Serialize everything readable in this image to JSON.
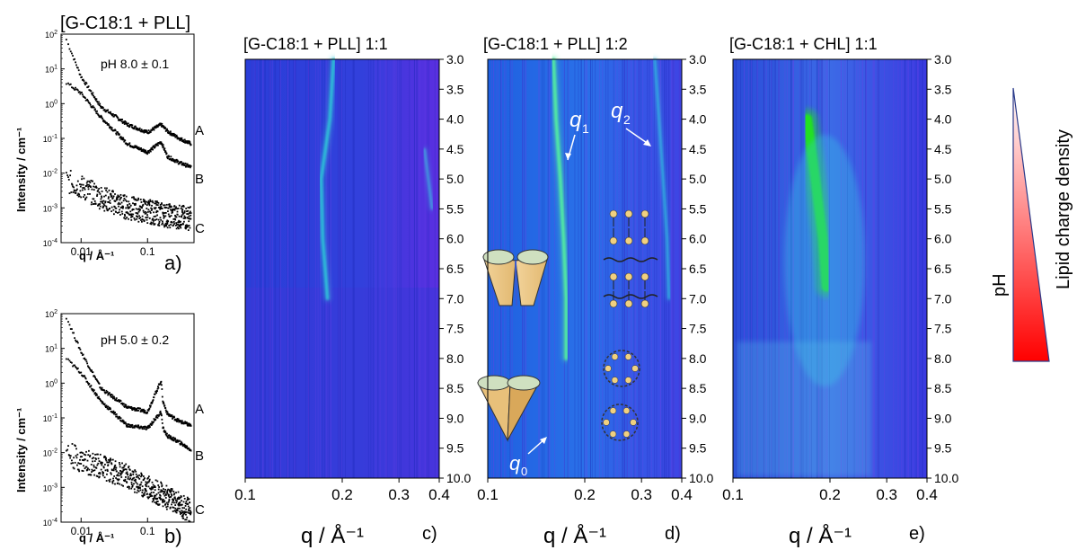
{
  "figure_title": "[G-C18:1 + PLL]",
  "chart_data": [
    {
      "panel": "a)",
      "type": "scatter",
      "annotation": "pH 8.0 ± 0.1",
      "xlabel": "q / Å⁻¹",
      "ylabel": "Intensity / cm⁻¹",
      "xscale": "log",
      "yscale": "log",
      "xlim": [
        0.005,
        0.5
      ],
      "ylim": [
        0.0001,
        100
      ],
      "xtick_labels": [
        "0.01",
        "0.1"
      ],
      "ytick_labels": [
        "10⁴",
        "10³",
        "10²",
        "10¹",
        "10⁰",
        "10¹",
        "10²"
      ],
      "series": [
        {
          "name": "A",
          "x": [
            0.006,
            0.01,
            0.02,
            0.05,
            0.1,
            0.16,
            0.2,
            0.3,
            0.45
          ],
          "y": [
            70,
            6,
            0.8,
            0.25,
            0.15,
            0.25,
            0.16,
            0.1,
            0.07
          ]
        },
        {
          "name": "B",
          "x": [
            0.006,
            0.01,
            0.02,
            0.05,
            0.1,
            0.16,
            0.2,
            0.3,
            0.45
          ],
          "y": [
            4,
            2,
            0.4,
            0.07,
            0.04,
            0.08,
            0.03,
            0.02,
            0.015
          ]
        },
        {
          "name": "C",
          "x": [
            0.006,
            0.01,
            0.02,
            0.05,
            0.1,
            0.2,
            0.45
          ],
          "y": [
            0.006,
            0.004,
            0.002,
            0.001,
            0.0008,
            0.0006,
            0.0005
          ]
        }
      ]
    },
    {
      "panel": "b)",
      "type": "scatter",
      "annotation": "pH 5.0 ± 0.2",
      "xlabel": "q / Å⁻¹",
      "ylabel": "Intensity / cm⁻¹",
      "xscale": "log",
      "yscale": "log",
      "xlim": [
        0.005,
        0.5
      ],
      "ylim": [
        0.0001,
        100
      ],
      "xtick_labels": [
        "0.01",
        "0.1"
      ],
      "ytick_labels": [
        "10⁴",
        "10³",
        "10²",
        "10¹",
        "10⁰",
        "10¹",
        "10²"
      ],
      "series": [
        {
          "name": "A",
          "x": [
            0.006,
            0.01,
            0.02,
            0.05,
            0.1,
            0.16,
            0.17,
            0.2,
            0.3,
            0.45
          ],
          "y": [
            80,
            8,
            0.7,
            0.2,
            0.15,
            1.2,
            0.3,
            0.13,
            0.08,
            0.06
          ]
        },
        {
          "name": "B",
          "x": [
            0.006,
            0.01,
            0.02,
            0.05,
            0.1,
            0.16,
            0.17,
            0.2,
            0.3,
            0.45
          ],
          "y": [
            5,
            2,
            0.3,
            0.06,
            0.05,
            0.15,
            0.05,
            0.03,
            0.02,
            0.012
          ]
        },
        {
          "name": "C",
          "x": [
            0.006,
            0.01,
            0.02,
            0.05,
            0.1,
            0.2,
            0.45
          ],
          "y": [
            0.01,
            0.006,
            0.004,
            0.002,
            0.001,
            0.0005,
            0.0002
          ]
        }
      ]
    },
    {
      "panel": "c)",
      "type": "heatmap",
      "title": "[G-C18:1 + PLL] 1:1",
      "xlabel": "q / Å⁻¹",
      "ylabel": "pH",
      "xscale": "log",
      "xlim": [
        0.1,
        0.4
      ],
      "ylim": [
        3.0,
        10.0
      ],
      "xtick_labels": [
        "0.1",
        "0.2",
        "0.3",
        "0.4"
      ],
      "ytick_labels": [
        "3.0",
        "3.5",
        "4.0",
        "4.5",
        "5.0",
        "5.5",
        "6.0",
        "6.5",
        "7.0",
        "7.5",
        "8.0",
        "8.5",
        "9.0",
        "9.5",
        "10.0"
      ],
      "ridges": [
        {
          "pH": [
            3.0,
            4.0,
            5.0,
            6.0,
            7.0
          ],
          "q": [
            0.188,
            0.183,
            0.172,
            0.174,
            0.18
          ]
        },
        {
          "pH": [
            4.5,
            5.5
          ],
          "q": [
            0.36,
            0.38
          ]
        }
      ]
    },
    {
      "panel": "d)",
      "type": "heatmap",
      "title": "[G-C18:1 + PLL] 1:2",
      "xlabel": "q / Å⁻¹",
      "ylabel": "pH",
      "xscale": "log",
      "xlim": [
        0.1,
        0.4
      ],
      "ylim": [
        3.0,
        10.0
      ],
      "xtick_labels": [
        "0.1",
        "0.2",
        "0.3",
        "0.4"
      ],
      "ytick_labels": [
        "3.0",
        "3.5",
        "4.0",
        "4.5",
        "5.0",
        "5.5",
        "6.0",
        "6.5",
        "7.0",
        "7.5",
        "8.0",
        "8.5",
        "9.0",
        "9.5",
        "10.0"
      ],
      "peak_labels": [
        "q",
        "q",
        "q"
      ],
      "peak_subscripts": [
        "1",
        "2",
        "0"
      ],
      "ridges": [
        {
          "name": "q1",
          "pH": [
            3.0,
            4.0,
            5.0,
            6.0,
            7.0,
            8.0
          ],
          "q": [
            0.16,
            0.163,
            0.168,
            0.172,
            0.175,
            0.175
          ]
        },
        {
          "name": "q2",
          "pH": [
            3.0,
            4.0,
            5.0,
            6.0,
            7.0
          ],
          "q": [
            0.33,
            0.34,
            0.35,
            0.36,
            0.365
          ]
        }
      ]
    },
    {
      "panel": "e)",
      "type": "heatmap",
      "title": "[G-C18:1 + CHL] 1:1",
      "xlabel": "q / Å⁻¹",
      "ylabel": "pH",
      "xscale": "log",
      "xlim": [
        0.1,
        0.4
      ],
      "ylim": [
        3.0,
        10.0
      ],
      "xtick_labels": [
        "0.1",
        "0.2",
        "0.3",
        "0.4"
      ],
      "ytick_labels": [
        "3.0",
        "3.5",
        "4.0",
        "4.5",
        "5.0",
        "5.5",
        "6.0",
        "6.5",
        "7.0",
        "7.5",
        "8.0",
        "8.5",
        "9.0",
        "9.5",
        "10.0"
      ],
      "ridges": [
        {
          "pH": [
            4.0,
            5.0,
            6.0,
            6.8
          ],
          "q": [
            0.17,
            0.18,
            0.19,
            0.195
          ]
        }
      ]
    }
  ],
  "sidebar": {
    "label": "Lipid charge density",
    "gradient_top_color": "#ffffff",
    "gradient_bottom_color": "#ff0000"
  },
  "colors": {
    "heatmap_background": "#2b35d6",
    "heatmap_ridge": "#33e0b0",
    "heatmap_hot": "#20e020",
    "marker": "#000000"
  }
}
